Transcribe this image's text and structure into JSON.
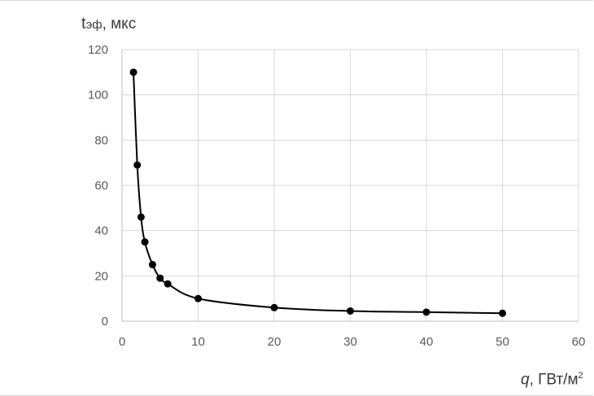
{
  "chart_data": {
    "type": "scatter",
    "title": "",
    "ylabel_symbol": "t",
    "ylabel_sub": "эф",
    "ylabel_unit": ", мкс",
    "xlabel_symbol": "q",
    "xlabel_unit": ", ГВт/м",
    "xlabel_sup": "2",
    "xlim": [
      0,
      60
    ],
    "ylim": [
      0,
      120
    ],
    "x_ticks": [
      0,
      10,
      20,
      30,
      40,
      50,
      60
    ],
    "y_ticks": [
      0,
      20,
      40,
      60,
      80,
      100,
      120
    ],
    "grid": true,
    "series": [
      {
        "x": [
          1.5,
          2,
          2.5,
          3,
          4,
          5,
          6,
          10,
          20,
          30,
          40,
          50
        ],
        "y": [
          110,
          69,
          46,
          35,
          25,
          19,
          16.5,
          10,
          6,
          4.5,
          4,
          3.5
        ],
        "marker": "circle",
        "line": "smooth",
        "color": "#000000"
      }
    ],
    "colors": {
      "grid": "#d9d9d9",
      "axis": "#bfbfbf",
      "tick_text": "#595959"
    }
  }
}
